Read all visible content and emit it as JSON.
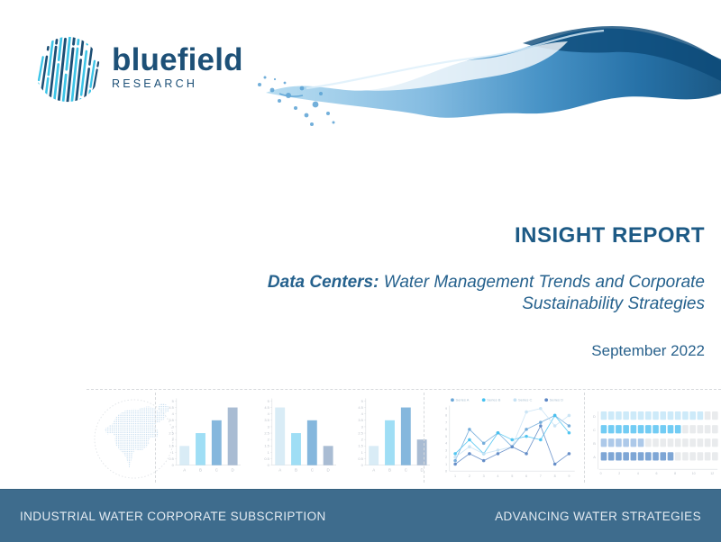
{
  "brand": {
    "name": "bluefield",
    "sub": "RESEARCH",
    "navy": "#1d5077",
    "cyan": "#3cc5e8"
  },
  "title_block": {
    "kicker": "INSIGHT REPORT",
    "subtitle_bold": "Data Centers:",
    "subtitle_line1": " Water Management Trends and Corporate",
    "subtitle_line2": "Sustainability Strategies",
    "date": "September 2022"
  },
  "footer": {
    "left": "INDUSTRIAL WATER CORPORATE SUBSCRIPTION",
    "right": "ADVANCING WATER STRATEGIES",
    "bg": "#3e6c8d"
  },
  "colors": {
    "heading": "#1d5a85",
    "subtitle": "#25618d",
    "axis_text": "#bcc2ca",
    "axis_line": "#dadde1"
  },
  "chart_data": [
    {
      "type": "map",
      "label": "North America dotted map thumbnail"
    },
    {
      "type": "bar",
      "categories": [
        "A",
        "B",
        "C",
        "D"
      ],
      "values": [
        1.5,
        2.5,
        3.5,
        4.5
      ],
      "ylim": [
        0,
        5
      ],
      "ytick_step": 0.5,
      "bar_colors": [
        "#d9ecf6",
        "#9fdef5",
        "#85b7dd",
        "#a9bcd3"
      ],
      "title": "",
      "xlabel": "",
      "ylabel": ""
    },
    {
      "type": "bar",
      "categories": [
        "A",
        "B",
        "C",
        "D"
      ],
      "values": [
        4.5,
        2.5,
        3.5,
        1.5
      ],
      "ylim": [
        0,
        5
      ],
      "ytick_step": 0.5,
      "bar_colors": [
        "#d9ecf6",
        "#9fdef5",
        "#85b7dd",
        "#a9bcd3"
      ],
      "title": "",
      "xlabel": "",
      "ylabel": ""
    },
    {
      "type": "bar",
      "categories": [
        "A",
        "B",
        "C",
        "D"
      ],
      "values": [
        1.5,
        3.5,
        4.5,
        2
      ],
      "ylim": [
        0,
        5
      ],
      "ytick_step": 0.5,
      "bar_colors": [
        "#d9ecf6",
        "#9fdef5",
        "#85b7dd",
        "#a9bcd3"
      ],
      "title": "",
      "xlabel": "",
      "ylabel": ""
    },
    {
      "type": "line",
      "x": [
        1,
        2,
        3,
        4,
        5,
        6,
        7,
        8,
        9
      ],
      "ylim": [
        0,
        9
      ],
      "legend_position": "top",
      "series": [
        {
          "name": "Series A",
          "color": "#6ba7d8",
          "values": [
            1.5,
            6,
            4,
            5.5,
            3.5,
            6,
            7,
            8,
            6.5
          ]
        },
        {
          "name": "Series B",
          "color": "#45c1f0",
          "values": [
            2.5,
            4.5,
            2.5,
            5.5,
            4.5,
            5,
            4.5,
            8,
            5.5
          ]
        },
        {
          "name": "Series C",
          "color": "#c7e2f4",
          "values": [
            2,
            3.5,
            2.5,
            3,
            3.5,
            8.5,
            9,
            6.5,
            8
          ]
        },
        {
          "name": "Series D",
          "color": "#5b86c4",
          "values": [
            1,
            2.5,
            1.5,
            2.5,
            3.5,
            2.5,
            6.5,
            1,
            2.5
          ]
        }
      ]
    },
    {
      "type": "heatmap",
      "subtype": "dot-matrix",
      "total_per_row": 16,
      "empty_color": "#e9ebed",
      "xticks": [
        0,
        2,
        4,
        6,
        8,
        10,
        12
      ],
      "rows": [
        {
          "label": "D",
          "filled": 14,
          "color": "#cdeaf9"
        },
        {
          "label": "C",
          "filled": 11,
          "color": "#72ccf4"
        },
        {
          "label": "B",
          "filled": 6,
          "color": "#adc9e9"
        },
        {
          "label": "A",
          "filled": 10,
          "color": "#7ea6d5"
        }
      ]
    }
  ]
}
